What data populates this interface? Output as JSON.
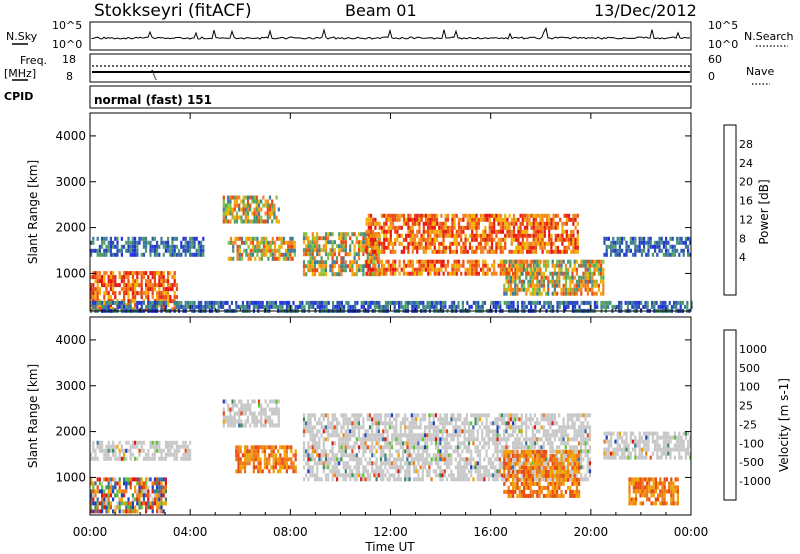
{
  "header": {
    "radar": "Stokkseyri (fitACF)",
    "beam": "Beam 01",
    "date": "13/Dec/2012"
  },
  "status": {
    "nsky_label": "N.Sky",
    "nsky_ticks": [
      "10^5",
      "10^0"
    ],
    "nsearch_label": "N.Search",
    "nsearch_ticks": [
      "10^5",
      "10^0"
    ],
    "freq_label": "Freq.",
    "freq_unit": "[MHz]",
    "freq_ticks": [
      "18",
      "8"
    ],
    "nave_label": "Nave",
    "nave_ticks": [
      "60",
      "0"
    ],
    "cpid_label": "CPID",
    "cpid_value": "normal (fast) 151"
  },
  "colors": {
    "power": [
      "#2233dd",
      "#2a4fb0",
      "#3d7d9a",
      "#4f9e6a",
      "#84c23a",
      "#f2b000",
      "#f58220",
      "#ea4a10",
      "#e8160c"
    ],
    "velocity": [
      "#1c3fbf",
      "#3670a8",
      "#3a8e5a",
      "#5dc433",
      "#c8c8c8",
      "#f2a200",
      "#f07a18",
      "#e84a10",
      "#e0150c"
    ]
  },
  "chart_data": [
    {
      "type": "heatmap",
      "name": "power",
      "ylabel": "Slant Range [km]",
      "ylim": [
        180,
        4500
      ],
      "yticks": [
        "1000",
        "2000",
        "3000",
        "4000"
      ],
      "xlim_hours": [
        0,
        24
      ],
      "colorbar_label": "Power [dB]",
      "colorbar_ticks": [
        "4",
        "8",
        "12",
        "16",
        "20",
        "24",
        "28"
      ],
      "colorbar_range": [
        0,
        30
      ],
      "regions": [
        {
          "t": [
            0.0,
            3.5
          ],
          "r": [
            200,
            1050
          ],
          "level": "strong"
        },
        {
          "t": [
            0.0,
            4.5
          ],
          "r": [
            1450,
            1800
          ],
          "level": "weak"
        },
        {
          "t": [
            5.3,
            7.5
          ],
          "r": [
            2100,
            2700
          ],
          "level": "moderate"
        },
        {
          "t": [
            5.5,
            8.2
          ],
          "r": [
            1300,
            1800
          ],
          "level": "moderate"
        },
        {
          "t": [
            8.5,
            11.5
          ],
          "r": [
            1000,
            1900
          ],
          "level": "moderate"
        },
        {
          "t": [
            11.0,
            18.0
          ],
          "r": [
            1000,
            1300
          ],
          "level": "strong"
        },
        {
          "t": [
            11.0,
            19.5
          ],
          "r": [
            1500,
            2300
          ],
          "level": "strong"
        },
        {
          "t": [
            16.5,
            20.5
          ],
          "r": [
            600,
            1300
          ],
          "level": "moderate"
        },
        {
          "t": [
            20.5,
            24.0
          ],
          "r": [
            1400,
            1800
          ],
          "level": "weak"
        },
        {
          "t": [
            0.0,
            24.0
          ],
          "r": [
            200,
            400
          ],
          "level": "weak"
        }
      ]
    },
    {
      "type": "heatmap",
      "name": "velocity",
      "ylabel": "Slant Range [km]",
      "ylim": [
        180,
        4500
      ],
      "yticks": [
        "1000",
        "2000",
        "3000",
        "4000"
      ],
      "xlim_hours": [
        0,
        24
      ],
      "xticks": [
        "00:00",
        "04:00",
        "08:00",
        "12:00",
        "16:00",
        "20:00",
        "00:00"
      ],
      "xlabel": "Time UT",
      "colorbar_label": "Velocity [m s-1]",
      "colorbar_ticks": [
        "1000",
        "500",
        "100",
        "25",
        "-25",
        "-100",
        "-500",
        "-1000"
      ],
      "regions": [
        {
          "t": [
            0.0,
            3.0
          ],
          "r": [
            300,
            1000
          ],
          "level": "mixed"
        },
        {
          "t": [
            0.0,
            4.0
          ],
          "r": [
            1400,
            1800
          ],
          "level": "near-zero"
        },
        {
          "t": [
            5.3,
            7.5
          ],
          "r": [
            2100,
            2700
          ],
          "level": "near-zero"
        },
        {
          "t": [
            5.8,
            8.2
          ],
          "r": [
            1100,
            1700
          ],
          "level": "negative"
        },
        {
          "t": [
            8.5,
            20.0
          ],
          "r": [
            1000,
            2400
          ],
          "level": "near-zero"
        },
        {
          "t": [
            16.5,
            19.5
          ],
          "r": [
            600,
            1600
          ],
          "level": "negative"
        },
        {
          "t": [
            20.5,
            24.0
          ],
          "r": [
            1400,
            2000
          ],
          "level": "near-zero"
        },
        {
          "t": [
            21.5,
            23.5
          ],
          "r": [
            400,
            1000
          ],
          "level": "negative"
        }
      ]
    }
  ]
}
